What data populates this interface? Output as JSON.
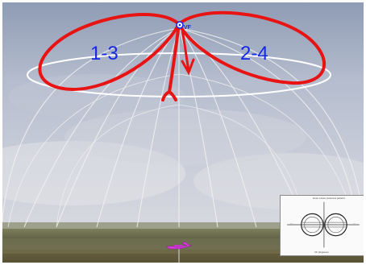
{
  "scene": {
    "lobe_left_label": "1-3",
    "lobe_right_label": "2-4",
    "antenna_marker_label": "VF",
    "lobe_color": "#e81414",
    "label_color": "#1428e6",
    "sky_top_color": "#a9b5c9",
    "ground_color": "#5d5b3c",
    "dome_line_color": "#f2f2f2"
  },
  "inset": {
    "title": "Hose Lobes (Antenna pattern)",
    "axis_label": "VF (degrees)"
  },
  "aircraft": {
    "icon": "aircraft-icon",
    "color": "#d43ad8"
  }
}
